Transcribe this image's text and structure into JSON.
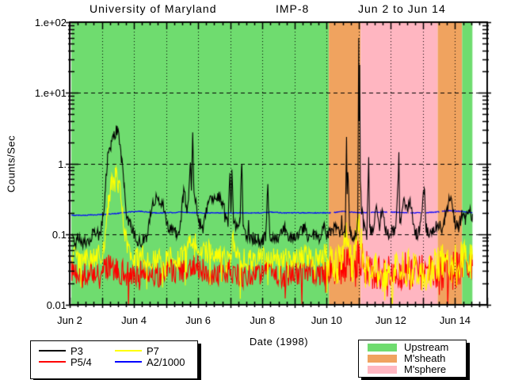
{
  "title": {
    "left": "University of Maryland",
    "center": "IMP-8",
    "right": "Jun 2 to Jun 14"
  },
  "axes": {
    "y": {
      "label": "Counts/Sec",
      "scale": "log",
      "range": [
        0.01,
        100
      ],
      "ticks": [
        {
          "value": 100,
          "label": "1.e+02"
        },
        {
          "value": 10,
          "label": "1.e+01"
        },
        {
          "value": 1,
          "label": "1."
        },
        {
          "value": 0.1,
          "label": "0.1"
        },
        {
          "value": 0.01,
          "label": "0.01"
        }
      ]
    },
    "x": {
      "label": "Date (1998)",
      "range_days": [
        2,
        15
      ],
      "ticks": [
        {
          "day": 2,
          "label": "Jun 2"
        },
        {
          "day": 4,
          "label": "Jun 4"
        },
        {
          "day": 6,
          "label": "Jun 6"
        },
        {
          "day": 8,
          "label": "Jun 8"
        },
        {
          "day": 10,
          "label": "Jun 10"
        },
        {
          "day": 12,
          "label": "Jun 12"
        },
        {
          "day": 14,
          "label": "Jun 14"
        }
      ]
    }
  },
  "series_legend": [
    {
      "label": "P3",
      "color": "#000000"
    },
    {
      "label": "P5/4",
      "color": "#ff0000"
    },
    {
      "label": "P7",
      "color": "#ffff00"
    },
    {
      "label": "A2/1000",
      "color": "#0000ff"
    }
  ],
  "region_legend": [
    {
      "label": "Upstream",
      "color": "#6fdc6f"
    },
    {
      "label": "M'sheath",
      "color": "#f0a35f"
    },
    {
      "label": "M'sphere",
      "color": "#ffb6c1"
    }
  ],
  "chart_data": {
    "type": "line",
    "title": "University of Maryland IMP-8 Jun 2 to Jun 14",
    "xlabel": "Date (1998)",
    "ylabel": "Counts/Sec",
    "yscale": "log",
    "ylim": [
      0.01,
      100
    ],
    "x_days_1998_june": [
      2,
      15
    ],
    "grid_x_days": [
      3,
      4,
      5,
      6,
      7,
      8,
      9,
      10,
      11,
      12,
      13,
      14
    ],
    "grid_y_values": [
      10,
      1,
      0.1
    ],
    "regions": [
      {
        "label": "Upstream",
        "color": "#6fdc6f",
        "start": 2.05,
        "end": 10.07
      },
      {
        "label": "M'sheath",
        "color": "#f0a35f",
        "start": 10.07,
        "end": 11.06
      },
      {
        "label": "M'sphere",
        "color": "#ffb6c1",
        "start": 11.06,
        "end": 13.46
      },
      {
        "label": "M'sheath",
        "color": "#f0a35f",
        "start": 13.46,
        "end": 14.22
      },
      {
        "label": "Upstream",
        "color": "#6fdc6f",
        "start": 14.22,
        "end": 14.54
      }
    ],
    "series": [
      {
        "name": "A2/1000",
        "color": "#0000ff",
        "width": 1.2,
        "noise": {
          "amp": 0.006
        },
        "gaps": [
          [
            10.15,
            10.22
          ],
          [
            10.62,
            10.7
          ],
          [
            11.28,
            11.36
          ],
          [
            11.9,
            11.98
          ],
          [
            12.52,
            12.6
          ],
          [
            12.95,
            13.08
          ],
          [
            13.52,
            13.58
          ]
        ],
        "anchors": [
          [
            2.05,
            0.185
          ],
          [
            2.5,
            0.185
          ],
          [
            3.0,
            0.19
          ],
          [
            3.4,
            0.195
          ],
          [
            3.8,
            0.205
          ],
          [
            4.2,
            0.21
          ],
          [
            4.6,
            0.2
          ],
          [
            5.0,
            0.2
          ],
          [
            5.5,
            0.205
          ],
          [
            6.0,
            0.2
          ],
          [
            6.5,
            0.2
          ],
          [
            7.0,
            0.2
          ],
          [
            7.5,
            0.2
          ],
          [
            8.0,
            0.2
          ],
          [
            8.3,
            0.205
          ],
          [
            8.7,
            0.2
          ],
          [
            9.2,
            0.2
          ],
          [
            9.7,
            0.2
          ],
          [
            10.1,
            0.2
          ],
          [
            10.5,
            0.21
          ],
          [
            11.0,
            0.2
          ],
          [
            11.5,
            0.205
          ],
          [
            12.0,
            0.205
          ],
          [
            12.5,
            0.2
          ],
          [
            13.0,
            0.2
          ],
          [
            13.4,
            0.205
          ],
          [
            13.8,
            0.215
          ],
          [
            14.2,
            0.21
          ],
          [
            14.54,
            0.2
          ]
        ]
      },
      {
        "name": "P5/4",
        "color": "#ff0000",
        "width": 1.1,
        "noise": {
          "amp": 0.18,
          "amp2": 0.27,
          "amp2_from": 10.07,
          "spike_prob": 0.05,
          "spike_amp": 0.45,
          "spike_dir": -1
        },
        "gaps": [],
        "anchors": [
          [
            2.05,
            0.03
          ],
          [
            2.4,
            0.026
          ],
          [
            2.8,
            0.03
          ],
          [
            3.2,
            0.034
          ],
          [
            3.5,
            0.03
          ],
          [
            3.9,
            0.027
          ],
          [
            4.3,
            0.03
          ],
          [
            4.7,
            0.026
          ],
          [
            5.1,
            0.03
          ],
          [
            5.5,
            0.028
          ],
          [
            5.83,
            0.038
          ],
          [
            6.2,
            0.03
          ],
          [
            6.6,
            0.028
          ],
          [
            7.0,
            0.03
          ],
          [
            7.4,
            0.026
          ],
          [
            7.8,
            0.028
          ],
          [
            8.2,
            0.03
          ],
          [
            8.6,
            0.026
          ],
          [
            9.0,
            0.028
          ],
          [
            9.4,
            0.03
          ],
          [
            9.8,
            0.028
          ],
          [
            10.07,
            0.032
          ],
          [
            10.4,
            0.03
          ],
          [
            10.62,
            0.042
          ],
          [
            10.9,
            0.032
          ],
          [
            11.0,
            0.05
          ],
          [
            11.3,
            0.032
          ],
          [
            11.7,
            0.028
          ],
          [
            12.1,
            0.032
          ],
          [
            12.5,
            0.03
          ],
          [
            12.9,
            0.027
          ],
          [
            13.3,
            0.03
          ],
          [
            13.7,
            0.029
          ],
          [
            14.1,
            0.031
          ],
          [
            14.54,
            0.03
          ]
        ]
      },
      {
        "name": "P7",
        "color": "#ffff00",
        "width": 1.1,
        "noise": {
          "amp": 0.16,
          "amp2": 0.27,
          "amp2_from": 10.07,
          "spike_prob": 0.05,
          "spike_amp": 0.5,
          "spike_dir": -1
        },
        "gaps": [],
        "anchors": [
          [
            2.05,
            0.05
          ],
          [
            2.3,
            0.042
          ],
          [
            2.6,
            0.046
          ],
          [
            2.9,
            0.05
          ],
          [
            3.05,
            0.06
          ],
          [
            3.2,
            0.25
          ],
          [
            3.3,
            0.5
          ],
          [
            3.42,
            0.7
          ],
          [
            3.52,
            0.5
          ],
          [
            3.62,
            0.28
          ],
          [
            3.72,
            0.1
          ],
          [
            3.85,
            0.05
          ],
          [
            4.1,
            0.045
          ],
          [
            4.4,
            0.05
          ],
          [
            4.7,
            0.042
          ],
          [
            5.0,
            0.05
          ],
          [
            5.3,
            0.046
          ],
          [
            5.6,
            0.05
          ],
          [
            5.83,
            0.09
          ],
          [
            6.1,
            0.05
          ],
          [
            6.4,
            0.06
          ],
          [
            6.7,
            0.05
          ],
          [
            7.0,
            0.046
          ],
          [
            7.06,
            0.08
          ],
          [
            7.3,
            0.05
          ],
          [
            7.6,
            0.042
          ],
          [
            7.9,
            0.046
          ],
          [
            8.2,
            0.05
          ],
          [
            8.5,
            0.044
          ],
          [
            8.8,
            0.05
          ],
          [
            9.1,
            0.046
          ],
          [
            9.4,
            0.05
          ],
          [
            9.7,
            0.046
          ],
          [
            9.95,
            0.06
          ],
          [
            10.07,
            0.04
          ],
          [
            10.3,
            0.032
          ],
          [
            10.62,
            0.09
          ],
          [
            10.8,
            0.03
          ],
          [
            11.0,
            0.22
          ],
          [
            11.05,
            0.1
          ],
          [
            11.2,
            0.032
          ],
          [
            11.5,
            0.03
          ],
          [
            11.8,
            0.028
          ],
          [
            12.1,
            0.032
          ],
          [
            12.4,
            0.034
          ],
          [
            12.7,
            0.03
          ],
          [
            13.0,
            0.028
          ],
          [
            13.3,
            0.032
          ],
          [
            13.6,
            0.04
          ],
          [
            13.9,
            0.036
          ],
          [
            14.2,
            0.045
          ],
          [
            14.54,
            0.042
          ]
        ]
      },
      {
        "name": "P3",
        "color": "#000000",
        "width": 1.1,
        "noise": {
          "amp": 0.09,
          "spike_prob": 0.015,
          "spike_amp": 0.3
        },
        "gaps": [],
        "anchors": [
          [
            2.05,
            0.1
          ],
          [
            2.15,
            0.07
          ],
          [
            2.25,
            0.09
          ],
          [
            2.35,
            0.075
          ],
          [
            2.45,
            0.08
          ],
          [
            2.55,
            0.07
          ],
          [
            2.65,
            0.09
          ],
          [
            2.75,
            0.11
          ],
          [
            2.9,
            0.1
          ],
          [
            3.0,
            0.13
          ],
          [
            3.1,
            0.35
          ],
          [
            3.18,
            1.3
          ],
          [
            3.28,
            1.7
          ],
          [
            3.38,
            2.4
          ],
          [
            3.48,
            3.0
          ],
          [
            3.55,
            1.9
          ],
          [
            3.62,
            1.1
          ],
          [
            3.7,
            0.45
          ],
          [
            3.78,
            0.18
          ],
          [
            3.9,
            0.13
          ],
          [
            4.0,
            0.1
          ],
          [
            4.1,
            0.085
          ],
          [
            4.25,
            0.08
          ],
          [
            4.4,
            0.09
          ],
          [
            4.55,
            0.22
          ],
          [
            4.65,
            0.31
          ],
          [
            4.75,
            0.34
          ],
          [
            4.85,
            0.28
          ],
          [
            4.95,
            0.22
          ],
          [
            5.05,
            0.13
          ],
          [
            5.2,
            0.11
          ],
          [
            5.32,
            0.1
          ],
          [
            5.45,
            0.13
          ],
          [
            5.52,
            0.3
          ],
          [
            5.57,
            0.47
          ],
          [
            5.62,
            0.22
          ],
          [
            5.7,
            0.28
          ],
          [
            5.76,
            1.05
          ],
          [
            5.79,
            0.35
          ],
          [
            5.83,
            2.9
          ],
          [
            5.86,
            0.45
          ],
          [
            5.95,
            0.22
          ],
          [
            6.05,
            0.14
          ],
          [
            6.15,
            0.12
          ],
          [
            6.3,
            0.27
          ],
          [
            6.45,
            0.33
          ],
          [
            6.58,
            0.35
          ],
          [
            6.72,
            0.3
          ],
          [
            6.85,
            0.22
          ],
          [
            6.93,
            0.13
          ],
          [
            6.99,
            0.75
          ],
          [
            7.02,
            0.22
          ],
          [
            7.05,
            0.85
          ],
          [
            7.1,
            0.16
          ],
          [
            7.2,
            0.12
          ],
          [
            7.3,
            0.15
          ],
          [
            7.36,
            1.15
          ],
          [
            7.4,
            0.13
          ],
          [
            7.5,
            0.1
          ],
          [
            7.65,
            0.085
          ],
          [
            7.8,
            0.09
          ],
          [
            7.95,
            0.08
          ],
          [
            8.1,
            0.09
          ],
          [
            8.17,
            0.5
          ],
          [
            8.23,
            0.09
          ],
          [
            8.4,
            0.085
          ],
          [
            8.55,
            0.1
          ],
          [
            8.7,
            0.12
          ],
          [
            8.85,
            0.09
          ],
          [
            9.0,
            0.085
          ],
          [
            9.15,
            0.1
          ],
          [
            9.3,
            0.12
          ],
          [
            9.45,
            0.09
          ],
          [
            9.6,
            0.1
          ],
          [
            9.75,
            0.085
          ],
          [
            9.9,
            0.13
          ],
          [
            10.0,
            0.1
          ],
          [
            10.15,
            0.11
          ],
          [
            10.3,
            0.12
          ],
          [
            10.45,
            0.1
          ],
          [
            10.58,
            0.13
          ],
          [
            10.62,
            2.1
          ],
          [
            10.64,
            0.4
          ],
          [
            10.66,
            0.9
          ],
          [
            10.72,
            0.12
          ],
          [
            10.82,
            0.08
          ],
          [
            10.92,
            0.11
          ],
          [
            10.97,
            0.16
          ],
          [
            10.99,
            8
          ],
          [
            11.0,
            60
          ],
          [
            11.01,
            4
          ],
          [
            11.03,
            20
          ],
          [
            11.05,
            0.6
          ],
          [
            11.08,
            0.25
          ],
          [
            11.15,
            0.13
          ],
          [
            11.25,
            0.1
          ],
          [
            11.31,
            1.2
          ],
          [
            11.34,
            0.12
          ],
          [
            11.45,
            0.11
          ],
          [
            11.55,
            0.28
          ],
          [
            11.65,
            0.13
          ],
          [
            11.75,
            0.24
          ],
          [
            11.85,
            0.11
          ],
          [
            11.95,
            0.09
          ],
          [
            12.05,
            0.12
          ],
          [
            12.15,
            0.1
          ],
          [
            12.25,
            1.2
          ],
          [
            12.28,
            0.14
          ],
          [
            12.4,
            0.28
          ],
          [
            12.5,
            0.22
          ],
          [
            12.6,
            0.3
          ],
          [
            12.7,
            0.13
          ],
          [
            12.8,
            0.1
          ],
          [
            12.9,
            0.11
          ],
          [
            13.04,
            0.5
          ],
          [
            13.1,
            0.12
          ],
          [
            13.2,
            0.1
          ],
          [
            13.35,
            0.12
          ],
          [
            13.5,
            0.14
          ],
          [
            13.6,
            0.12
          ],
          [
            13.7,
            0.18
          ],
          [
            13.8,
            0.28
          ],
          [
            13.9,
            0.3
          ],
          [
            14.0,
            0.14
          ],
          [
            14.1,
            0.12
          ],
          [
            14.22,
            0.2
          ],
          [
            14.32,
            0.15
          ],
          [
            14.42,
            0.22
          ],
          [
            14.54,
            0.17
          ]
        ]
      }
    ]
  }
}
